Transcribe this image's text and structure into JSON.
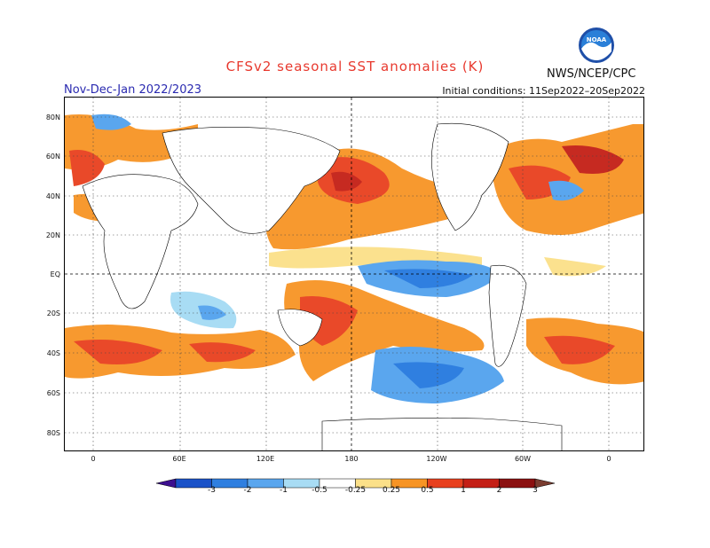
{
  "title": "CFSv2 seasonal SST anomalies (K)",
  "season": "Nov-Dec-Jan 2022/2023",
  "initial_conditions": "Initial conditions: 11Sep2022–20Sep2022",
  "agency": "NWS/NCEP/CPC",
  "logo_text": "NOAA",
  "lat_labels": [
    "80N",
    "60N",
    "40N",
    "20N",
    "EQ",
    "20S",
    "40S",
    "60S",
    "80S"
  ],
  "lon_labels": [
    "0",
    "60E",
    "120E",
    "180",
    "120W",
    "60W",
    "0"
  ],
  "colorbar": {
    "labels": [
      "-3",
      "-2",
      "-1",
      "-0.5",
      "-0.25",
      "0.25",
      "0.5",
      "1",
      "2",
      "3"
    ],
    "colors": [
      "#3c0f8f",
      "#1a52c8",
      "#2f7fe0",
      "#5aa6ee",
      "#a8dcf4",
      "#ffffff",
      "#fbe089",
      "#f79424",
      "#e8401e",
      "#c41f16",
      "#8b1010",
      "#7a3c30"
    ]
  },
  "chart_data": {
    "type": "heatmap",
    "variable": "SST anomalies (K)",
    "warm_regions": [
      "North Pacific",
      "Southwest Pacific",
      "Southern Ocean 40S",
      "North Atlantic"
    ],
    "cool_regions": [
      "Eastern Equatorial Pacific",
      "Southeast Pacific",
      "Indian Ocean"
    ]
  }
}
